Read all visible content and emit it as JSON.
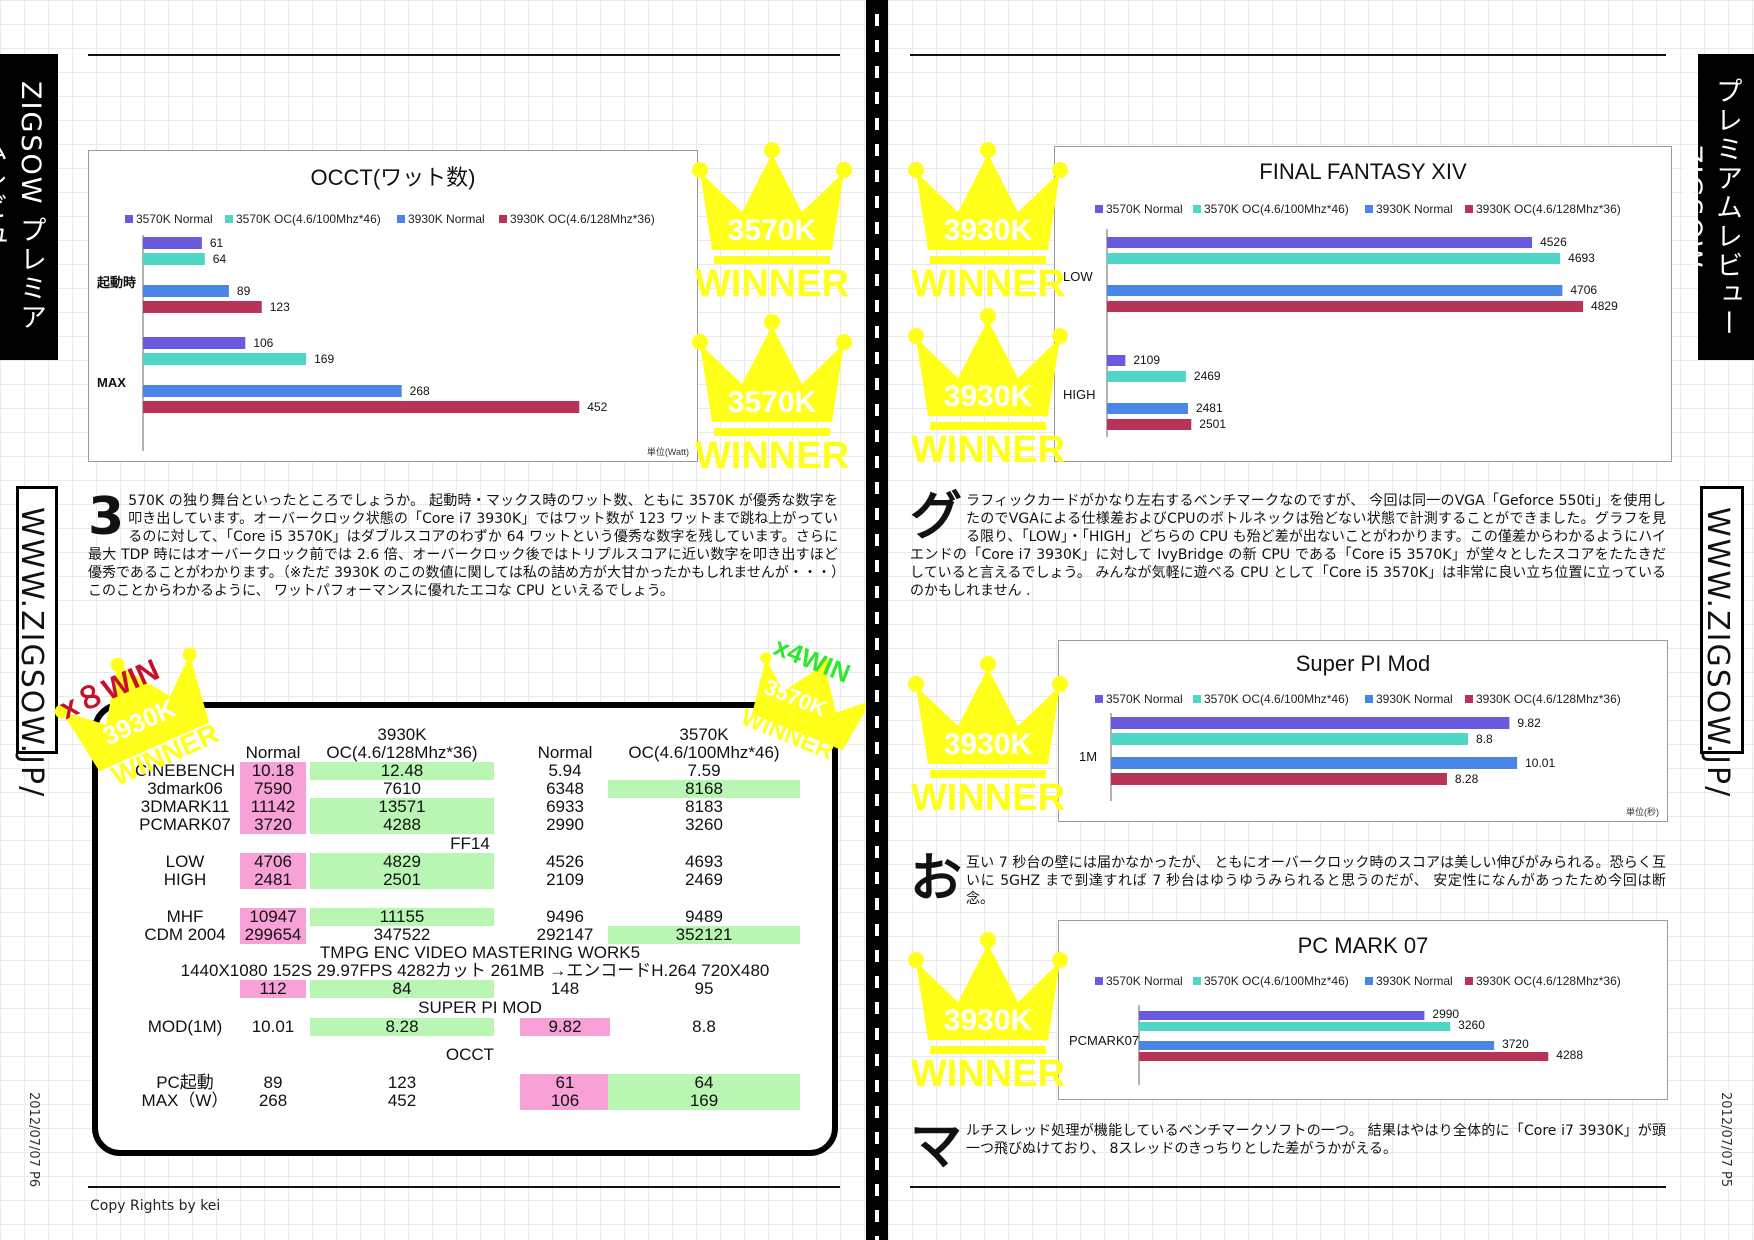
{
  "tab": {
    "line1": "ZIGSOW",
    "line2": "プレミアムレビュー"
  },
  "url": "WWW.ZIGSOW.JP/",
  "left": {
    "date": "2012/07/07 P6",
    "copyright": "Copy Rights by kei",
    "para": {
      "drop": "3",
      "text": "570K の独り舞台といったところでしょうか。 起動時・マックス時のワット数、ともに 3570K が優秀な数字を叩き出しています。オーバークロック状態の「Core i7 3930K」ではワット数が 123 ワットまで跳ね上がっているのに対して、「Core i5 3570K」はダブルスコアのわずか 64 ワットという優秀な数字を残しています。さらに最大 TDP 時にはオーバークロック前では 2.6 倍、オーバークロック後ではトリプルスコアに近い数字を叩き出すほど優秀であることがわかります。（※ただ 3930K のこの数値に関しては私の詰め方が大甘かったかもしれませんが・・・）このことからわかるように、 ワットパフォーマンスに優れたエコな CPU といえるでしょう。"
    },
    "crown1": {
      "name": "3570K",
      "label": "WINNER"
    },
    "crown2": {
      "name": "3570K",
      "label": "WINNER"
    },
    "stamp_l": {
      "count": "x８WIN",
      "name": "3930K",
      "label": "WINNER"
    },
    "stamp_r": {
      "count": "x4WIN",
      "name": "3570K",
      "label": "WINNER"
    },
    "table": {
      "h_3930": "3930K",
      "h_3930oc": "OC(4.6/128Mhz*36)",
      "h_3570": "3570K",
      "h_3570oc": "OC(4.6/100Mhz*46)",
      "h_normal1": "Normal",
      "h_normal2": "Normal",
      "rows": [
        {
          "label": "CINEBENCH",
          "a": "10.18",
          "b": "12.48",
          "c": "5.94",
          "d": "7.59"
        },
        {
          "label": "3dmark06",
          "a": "7590",
          "b": "7610",
          "c": "6348",
          "d": "8168"
        },
        {
          "label": "3DMARK11",
          "a": "11142",
          "b": "13571",
          "c": "6933",
          "d": "8183"
        },
        {
          "label": "PCMARK07",
          "a": "3720",
          "b": "4288",
          "c": "2990",
          "d": "3260"
        },
        {
          "label": "LOW",
          "a": "4706",
          "b": "4829",
          "c": "4526",
          "d": "4693"
        },
        {
          "label": "HIGH",
          "a": "2481",
          "b": "2501",
          "c": "2109",
          "d": "2469"
        },
        {
          "label": "MHF",
          "a": "10947",
          "b": "11155",
          "c": "9496",
          "d": "9489"
        },
        {
          "label": "CDM 2004",
          "a": "299654",
          "b": "347522",
          "c": "292147",
          "d": "352121"
        },
        {
          "label": "",
          "a": "112",
          "b": "84",
          "c": "148",
          "d": "95"
        },
        {
          "label": "MOD(1M)",
          "a": "10.01",
          "b": "8.28",
          "c": "9.82",
          "d": "8.8"
        },
        {
          "label": "PC起動",
          "a": "89",
          "b": "123",
          "c": "61",
          "d": "64"
        },
        {
          "label": "MAX（W）",
          "a": "268",
          "b": "452",
          "c": "106",
          "d": "169"
        }
      ],
      "sec_ff14": "FF14",
      "sec_tmpg": "TMPG ENC VIDEO MASTERING WORK5",
      "tmpg_sub": "1440X1080 152S 29.97FPS 4282カット 261MB →エンコードH.264 720X480",
      "sec_pi": "SUPER PI MOD",
      "sec_occt": "OCCT"
    }
  },
  "right": {
    "date": "2012/07/07 P5",
    "para1": {
      "drop": "グ",
      "text": "ラフィックカードがかなり左右するベンチマークなのですが、 今回は同一のVGA「Geforce 550ti」を使用したのでVGAによる仕様差およびCPUのボトルネックは殆どない状態で計測することができました。グラフを見る限り、「LOW」・「HIGH」どちらの CPU も殆ど差が出ないことがわかります。この僅差からわかるようにハイエンドの「Core i7 3930K」に対して IvyBridge の新 CPU である「Core i5 3570K」が堂々としたスコアをたたきだしていると言えるでしょう。 みんなが気軽に遊べる CPU として「Core i5 3570K」は非常に良い立ち位置に立っているのかもしれません ."
    },
    "para2": {
      "drop": "お",
      "text": "互い 7 秒台の壁には届かなかったが、 ともにオーバークロック時のスコアは美しい伸びがみられる。恐らく互いに 5GHZ まで到達すれば 7 秒台はゆうゆうみられると思うのだが、 安定性になんがあったため今回は断念。"
    },
    "para3": {
      "drop": "マ",
      "text": "ルチスレッド処理が機能しているベンチマークソフトの一つ。 結果はやはり全体的に「Core i7 3930K」が頭一つ飛びぬけており、 8スレッドのきっちりとした差がうかがえる。"
    },
    "crowns": [
      {
        "name": "3930K",
        "label": "WINNER"
      },
      {
        "name": "3930K",
        "label": "WINNER"
      },
      {
        "name": "3930K",
        "label": "WINNER"
      },
      {
        "name": "3930K",
        "label": "WINNER"
      }
    ]
  },
  "legend": [
    "3570K Normal",
    "3570K OC(4.6/100Mhz*46)",
    "3930K Normal",
    "3930K OC(4.6/128Mhz*36)"
  ],
  "colors": {
    "s1": "#6a5ae0",
    "s2": "#4fd6c6",
    "s3": "#4a86e8",
    "s4": "#b83358",
    "crown": "#ffff1a",
    "pink": "#f7a1d7",
    "green": "#b9f6b4"
  },
  "chart_data": [
    {
      "id": "occt",
      "type": "bar",
      "orientation": "horizontal",
      "title": "OCCT(ワット数)",
      "unit": "単位(Watt)",
      "categories": [
        "起動時",
        "MAX"
      ],
      "series": [
        {
          "name": "3570K Normal",
          "values": [
            61,
            106
          ]
        },
        {
          "name": "3570K OC(4.6/100Mhz*46)",
          "values": [
            64,
            169
          ]
        },
        {
          "name": "3930K Normal",
          "values": [
            89,
            268
          ]
        },
        {
          "name": "3930K OC(4.6/128Mhz*36)",
          "values": [
            123,
            452
          ]
        }
      ]
    },
    {
      "id": "ff14",
      "type": "bar",
      "orientation": "horizontal",
      "title": "FINAL FANTASY XIV",
      "unit": "",
      "categories": [
        "LOW",
        "HIGH"
      ],
      "series": [
        {
          "name": "3570K Normal",
          "values": [
            4526,
            2109
          ]
        },
        {
          "name": "3570K OC(4.6/100Mhz*46)",
          "values": [
            4693,
            2469
          ]
        },
        {
          "name": "3930K Normal",
          "values": [
            4706,
            2481
          ]
        },
        {
          "name": "3930K OC(4.6/128Mhz*36)",
          "values": [
            4829,
            2501
          ]
        }
      ]
    },
    {
      "id": "superpi",
      "type": "bar",
      "orientation": "horizontal",
      "title": "Super PI Mod",
      "unit": "単位(秒)",
      "categories": [
        "1M"
      ],
      "series": [
        {
          "name": "3570K Normal",
          "values": [
            9.82
          ]
        },
        {
          "name": "3570K OC(4.6/100Mhz*46)",
          "values": [
            8.8
          ]
        },
        {
          "name": "3930K Normal",
          "values": [
            10.01
          ]
        },
        {
          "name": "3930K OC(4.6/128Mhz*36)",
          "values": [
            8.28
          ]
        }
      ]
    },
    {
      "id": "pcmark",
      "type": "bar",
      "orientation": "horizontal",
      "title": "PC MARK 07",
      "unit": "",
      "categories": [
        "PCMARK07"
      ],
      "series": [
        {
          "name": "3570K Normal",
          "values": [
            2990
          ]
        },
        {
          "name": "3570K OC(4.6/100Mhz*46)",
          "values": [
            3260
          ]
        },
        {
          "name": "3930K Normal",
          "values": [
            3720
          ]
        },
        {
          "name": "3930K OC(4.6/128Mhz*36)",
          "values": [
            4288
          ]
        }
      ]
    }
  ]
}
